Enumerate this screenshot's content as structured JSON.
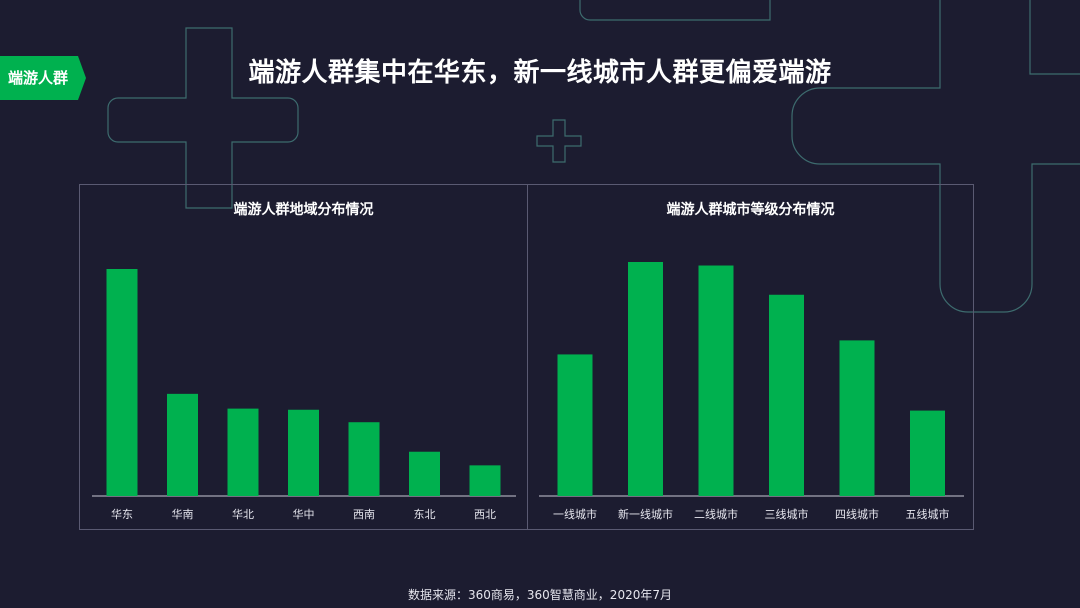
{
  "tag_label": "端游人群",
  "main_title": "端游人群集中在华东，新一线城市人群更偏爱端游",
  "source_note": "数据来源：360商易，360智慧商业，2020年7月",
  "colors": {
    "background": "#1c1c30",
    "accent": "#00b14f",
    "outline": "#3d6b6e"
  },
  "chart_data": [
    {
      "type": "bar",
      "title": "端游人群地域分布情况",
      "categories": [
        "华东",
        "华南",
        "华北",
        "华中",
        "西南",
        "东北",
        "西北"
      ],
      "values": [
        100,
        45,
        38.5,
        38,
        32.5,
        19.5,
        13.5
      ],
      "ylim": [
        0,
        100
      ]
    },
    {
      "type": "bar",
      "title": "端游人群城市等级分布情况",
      "categories": [
        "一线城市",
        "新一线城市",
        "二线城市",
        "三线城市",
        "四线城市",
        "五线城市"
      ],
      "values": [
        60.5,
        100,
        98.5,
        86,
        66.5,
        36.5
      ],
      "ylim": [
        0,
        100
      ]
    }
  ]
}
